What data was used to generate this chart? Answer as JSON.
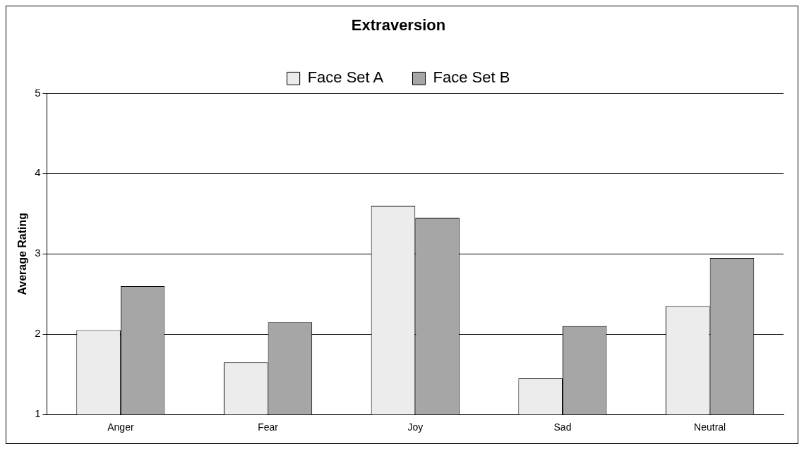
{
  "chart_data": {
    "type": "bar",
    "title": "Extraversion",
    "ylabel": "Average Rating",
    "categories": [
      "Anger",
      "Fear",
      "Joy",
      "Sad",
      "Neutral"
    ],
    "series": [
      {
        "name": "Face Set A",
        "color": "#ececec",
        "values": [
          2.05,
          1.65,
          3.6,
          1.45,
          2.35
        ]
      },
      {
        "name": "Face Set B",
        "color": "#a6a6a6",
        "values": [
          2.6,
          2.15,
          3.45,
          2.1,
          2.95
        ]
      }
    ],
    "ylim": [
      1,
      5
    ],
    "yticks": [
      1,
      2,
      3,
      4,
      5
    ],
    "grid": "y",
    "legend": "top"
  }
}
